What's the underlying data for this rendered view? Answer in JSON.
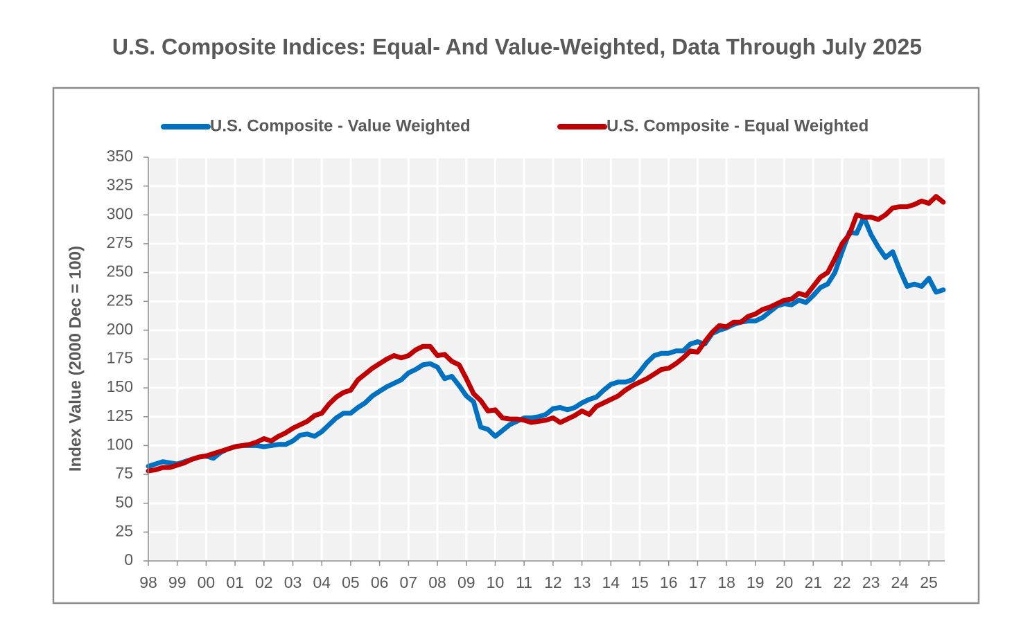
{
  "chart_data": {
    "type": "line",
    "title": "U.S. Composite Indices: Equal- And Value-Weighted, Data Through July 2025",
    "y_label": "Index Value (2000 Dec = 100)",
    "x": [
      1998,
      1998.25,
      1998.5,
      1998.75,
      1999,
      1999.25,
      1999.5,
      1999.75,
      2000,
      2000.25,
      2000.5,
      2000.75,
      2001,
      2001.25,
      2001.5,
      2001.75,
      2002,
      2002.25,
      2002.5,
      2002.75,
      2003,
      2003.25,
      2003.5,
      2003.75,
      2004,
      2004.25,
      2004.5,
      2004.75,
      2005,
      2005.25,
      2005.5,
      2005.75,
      2006,
      2006.25,
      2006.5,
      2006.75,
      2007,
      2007.25,
      2007.5,
      2007.75,
      2008,
      2008.25,
      2008.5,
      2008.75,
      2009,
      2009.25,
      2009.5,
      2009.75,
      2010,
      2010.25,
      2010.5,
      2010.75,
      2011,
      2011.25,
      2011.5,
      2011.75,
      2012,
      2012.25,
      2012.5,
      2012.75,
      2013,
      2013.25,
      2013.5,
      2013.75,
      2014,
      2014.25,
      2014.5,
      2014.75,
      2015,
      2015.25,
      2015.5,
      2015.75,
      2016,
      2016.25,
      2016.5,
      2016.75,
      2017,
      2017.25,
      2017.5,
      2017.75,
      2018,
      2018.25,
      2018.5,
      2018.75,
      2019,
      2019.25,
      2019.5,
      2019.75,
      2020,
      2020.25,
      2020.5,
      2020.75,
      2021,
      2021.25,
      2021.5,
      2021.75,
      2022,
      2022.25,
      2022.5,
      2022.75,
      2023,
      2023.25,
      2023.5,
      2023.75,
      2024,
      2024.25,
      2024.5,
      2024.75,
      2025,
      2025.25,
      2025.5
    ],
    "series": [
      {
        "name": "U.S. Composite - Value Weighted",
        "color": "#0070c0",
        "values": [
          82,
          84,
          86,
          85,
          84,
          86,
          88,
          90,
          91,
          89,
          94,
          97,
          99,
          100,
          100,
          100,
          99,
          100,
          101,
          101,
          104,
          109,
          110,
          108,
          112,
          118,
          124,
          128,
          128,
          133,
          137,
          143,
          147,
          151,
          154,
          157,
          163,
          166,
          170,
          171,
          168,
          158,
          160,
          152,
          143,
          138,
          116,
          114,
          108,
          113,
          118,
          121,
          124,
          124,
          125,
          127,
          132,
          133,
          131,
          133,
          137,
          140,
          142,
          148,
          153,
          155,
          155,
          157,
          164,
          172,
          178,
          180,
          180,
          182,
          182,
          188,
          190,
          188,
          197,
          200,
          202,
          205,
          207,
          208,
          208,
          211,
          216,
          221,
          223,
          222,
          226,
          224,
          230,
          237,
          240,
          250,
          268,
          285,
          284,
          298,
          283,
          272,
          263,
          268,
          252,
          238,
          240,
          238,
          245,
          233,
          235
        ]
      },
      {
        "name": "U.S. Composite - Equal Weighted",
        "color": "#c00000",
        "values": [
          78,
          79,
          81,
          81,
          83,
          85,
          88,
          90,
          91,
          93,
          95,
          97,
          99,
          100,
          101,
          103,
          106,
          104,
          108,
          111,
          115,
          118,
          121,
          126,
          128,
          136,
          142,
          146,
          148,
          157,
          162,
          167,
          171,
          175,
          178,
          176,
          178,
          183,
          186,
          186,
          178,
          179,
          173,
          170,
          158,
          145,
          139,
          130,
          131,
          124,
          123,
          123,
          122,
          120,
          121,
          122,
          124,
          120,
          123,
          126,
          130,
          127,
          134,
          137,
          140,
          143,
          148,
          152,
          155,
          158,
          162,
          166,
          167,
          171,
          176,
          182,
          181,
          190,
          198,
          204,
          203,
          207,
          207,
          212,
          214,
          218,
          220,
          223,
          226,
          227,
          232,
          230,
          238,
          246,
          250,
          262,
          275,
          283,
          300,
          298,
          298,
          296,
          300,
          306,
          307,
          307,
          309,
          312,
          310,
          316,
          311
        ]
      }
    ],
    "xlim": [
      1998,
      2025.55
    ],
    "xticks": [
      {
        "value": 1998,
        "label": "98"
      },
      {
        "value": 1999,
        "label": "99"
      },
      {
        "value": 2000,
        "label": "00"
      },
      {
        "value": 2001,
        "label": "01"
      },
      {
        "value": 2002,
        "label": "02"
      },
      {
        "value": 2003,
        "label": "03"
      },
      {
        "value": 2004,
        "label": "04"
      },
      {
        "value": 2005,
        "label": "05"
      },
      {
        "value": 2006,
        "label": "06"
      },
      {
        "value": 2007,
        "label": "07"
      },
      {
        "value": 2008,
        "label": "08"
      },
      {
        "value": 2009,
        "label": "09"
      },
      {
        "value": 2010,
        "label": "10"
      },
      {
        "value": 2011,
        "label": "11"
      },
      {
        "value": 2012,
        "label": "12"
      },
      {
        "value": 2013,
        "label": "13"
      },
      {
        "value": 2014,
        "label": "14"
      },
      {
        "value": 2015,
        "label": "15"
      },
      {
        "value": 2016,
        "label": "16"
      },
      {
        "value": 2017,
        "label": "17"
      },
      {
        "value": 2018,
        "label": "18"
      },
      {
        "value": 2019,
        "label": "19"
      },
      {
        "value": 2020,
        "label": "20"
      },
      {
        "value": 2021,
        "label": "21"
      },
      {
        "value": 2022,
        "label": "22"
      },
      {
        "value": 2023,
        "label": "23"
      },
      {
        "value": 2024,
        "label": "24"
      },
      {
        "value": 2025,
        "label": "25"
      }
    ],
    "ylim": [
      0,
      350
    ],
    "yticks": [
      0,
      25,
      50,
      75,
      100,
      125,
      150,
      175,
      200,
      225,
      250,
      275,
      300,
      325,
      350
    ],
    "grid": true,
    "legend": "top"
  }
}
